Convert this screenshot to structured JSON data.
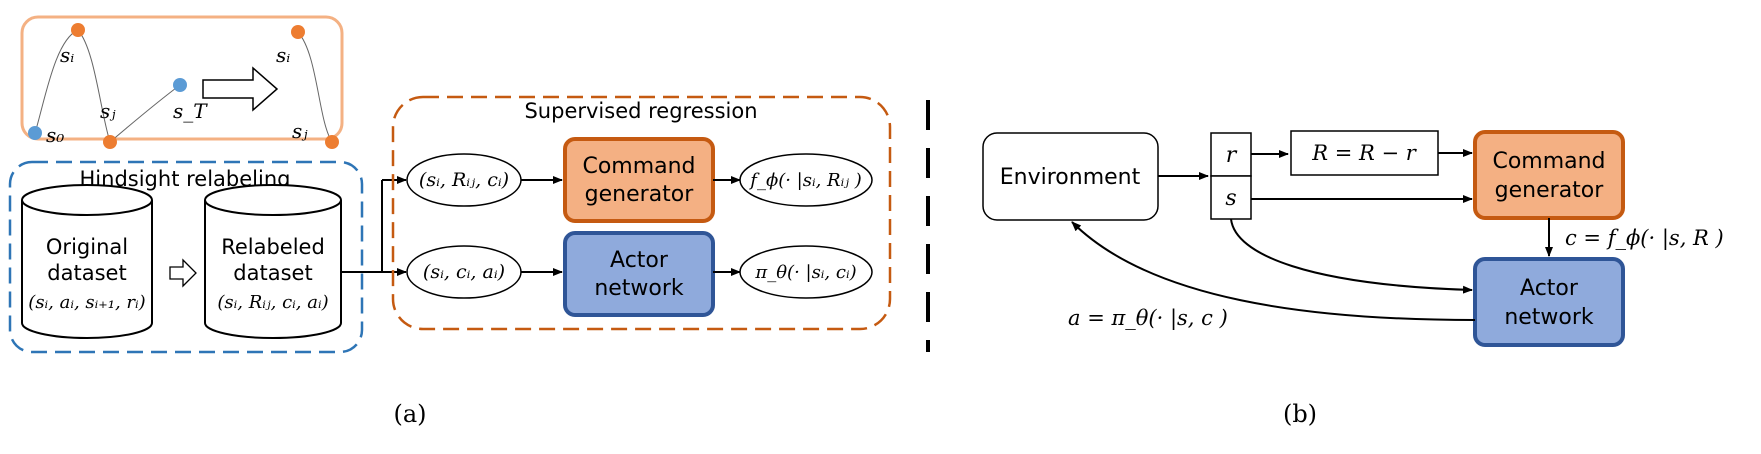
{
  "colors": {
    "orange_fill": "#f4b083",
    "orange_stroke": "#c55a11",
    "blue_fill": "#8faadc",
    "blue_stroke": "#2f5597",
    "traj_box_stroke": "#f4b183",
    "orange_node": "#ed7d31",
    "blue_node": "#5b9bd5",
    "relabel_stroke": "#2e75b6"
  },
  "panel_a": {
    "caption": "(a)",
    "trajectory": {
      "s0": "s₀",
      "si": "sᵢ",
      "sj": "sⱼ",
      "sT": "s_T"
    },
    "hindsight": {
      "title": "Hindsight relabeling",
      "original": {
        "line1": "Original",
        "line2": "dataset",
        "tuple": "(sᵢ, aᵢ, sᵢ₊₁, rᵢ)"
      },
      "relabeled": {
        "line1": "Relabeled",
        "line2": "dataset",
        "tuple": "(sᵢ, Rᵢⱼ, cᵢ, aᵢ)"
      }
    },
    "supervised": {
      "title": "Supervised regression",
      "input_top": "(sᵢ, Rᵢⱼ, cᵢ)",
      "input_bottom": "(sᵢ, cᵢ, aᵢ)",
      "command_generator": {
        "line1": "Command",
        "line2": "generator"
      },
      "actor_network": {
        "line1": "Actor",
        "line2": "network"
      },
      "output_top": "f_ϕ(· |sᵢ, Rᵢⱼ )",
      "output_bottom": "π_θ(· |sᵢ, cᵢ)"
    }
  },
  "panel_b": {
    "caption": "(b)",
    "environment": "Environment",
    "r_label": "r",
    "s_label": "s",
    "update": "R = R − r",
    "command_generator": {
      "line1": "Command",
      "line2": "generator"
    },
    "actor_network": {
      "line1": "Actor",
      "line2": "network"
    },
    "c_eq": "c = f_ϕ(· |s, R )",
    "a_eq": "a = π_θ(· |s, c )"
  }
}
